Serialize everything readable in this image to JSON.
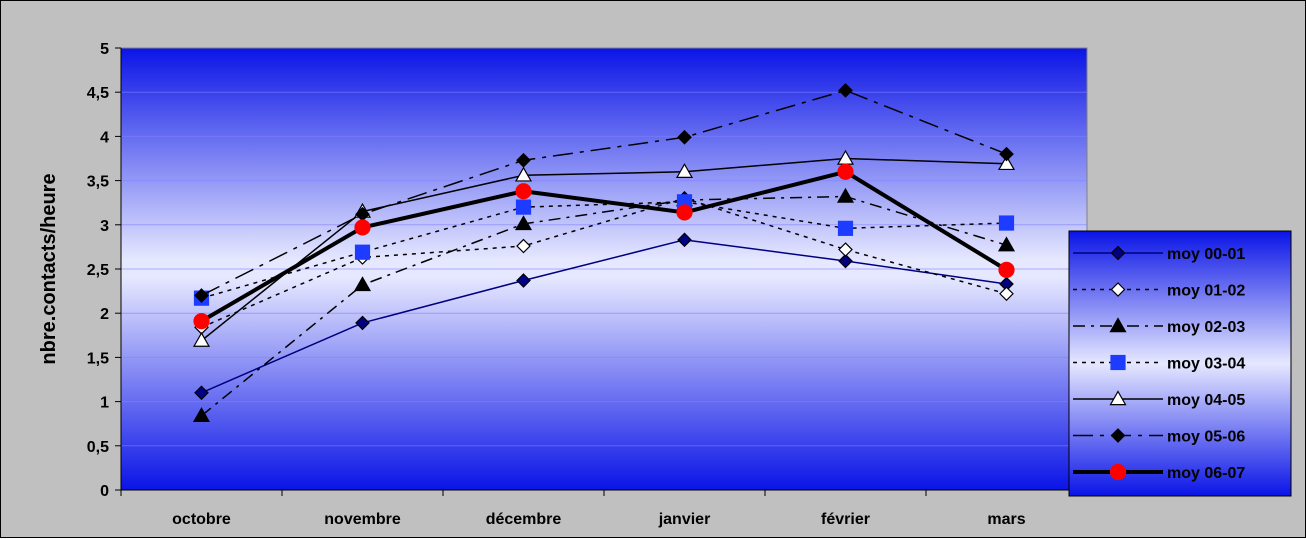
{
  "chart_data": {
    "type": "line",
    "title": "",
    "xlabel": "",
    "ylabel": "nbre.contacts/heure",
    "ylim": [
      0,
      5
    ],
    "y_ticks": [
      "0",
      "0,5",
      "1",
      "1,5",
      "2",
      "2,5",
      "3",
      "3,5",
      "4",
      "4,5",
      "5"
    ],
    "categories": [
      "octobre",
      "novembre",
      "décembre",
      "janvier",
      "février",
      "mars"
    ],
    "grid": "horizontal",
    "legend_position": "right",
    "background": "blue gradient",
    "series": [
      {
        "name": "moy 00-01",
        "values": [
          1.1,
          1.89,
          2.37,
          2.83,
          2.59,
          2.33
        ],
        "color": "#000080",
        "dash": "solid",
        "width": 1.5,
        "marker": "diamond",
        "marker_fill": "#000080"
      },
      {
        "name": "moy 01-02",
        "values": [
          1.84,
          2.63,
          2.76,
          3.3,
          2.72,
          2.22
        ],
        "color": "#000000",
        "dash": "dot",
        "width": 1.5,
        "marker": "diamond",
        "marker_fill": "#ffffff"
      },
      {
        "name": "moy 02-03",
        "values": [
          0.84,
          2.32,
          3.01,
          3.28,
          3.32,
          2.77
        ],
        "color": "#000000",
        "dash": "dashdot",
        "width": 1.5,
        "marker": "triangle",
        "marker_fill": "#000000"
      },
      {
        "name": "moy 03-04",
        "values": [
          2.17,
          2.69,
          3.2,
          3.26,
          2.96,
          3.02
        ],
        "color": "#000000",
        "dash": "dot",
        "width": 1.5,
        "marker": "square",
        "marker_fill": "#1e3cff"
      },
      {
        "name": "moy 04-05",
        "values": [
          1.69,
          3.15,
          3.56,
          3.6,
          3.75,
          3.69
        ],
        "color": "#000000",
        "dash": "solid",
        "width": 1.5,
        "marker": "triangle",
        "marker_fill": "#ffffff"
      },
      {
        "name": "moy 05-06",
        "values": [
          2.2,
          3.12,
          3.73,
          3.99,
          4.52,
          3.8
        ],
        "color": "#000000",
        "dash": "longdashdot",
        "width": 1.5,
        "marker": "diamond",
        "marker_fill": "#000000"
      },
      {
        "name": "moy 06-07",
        "values": [
          1.91,
          2.97,
          3.38,
          3.14,
          3.6,
          2.49
        ],
        "color": "#000000",
        "dash": "solid",
        "width": 4,
        "marker": "circle",
        "marker_fill": "#ff0000"
      }
    ]
  }
}
